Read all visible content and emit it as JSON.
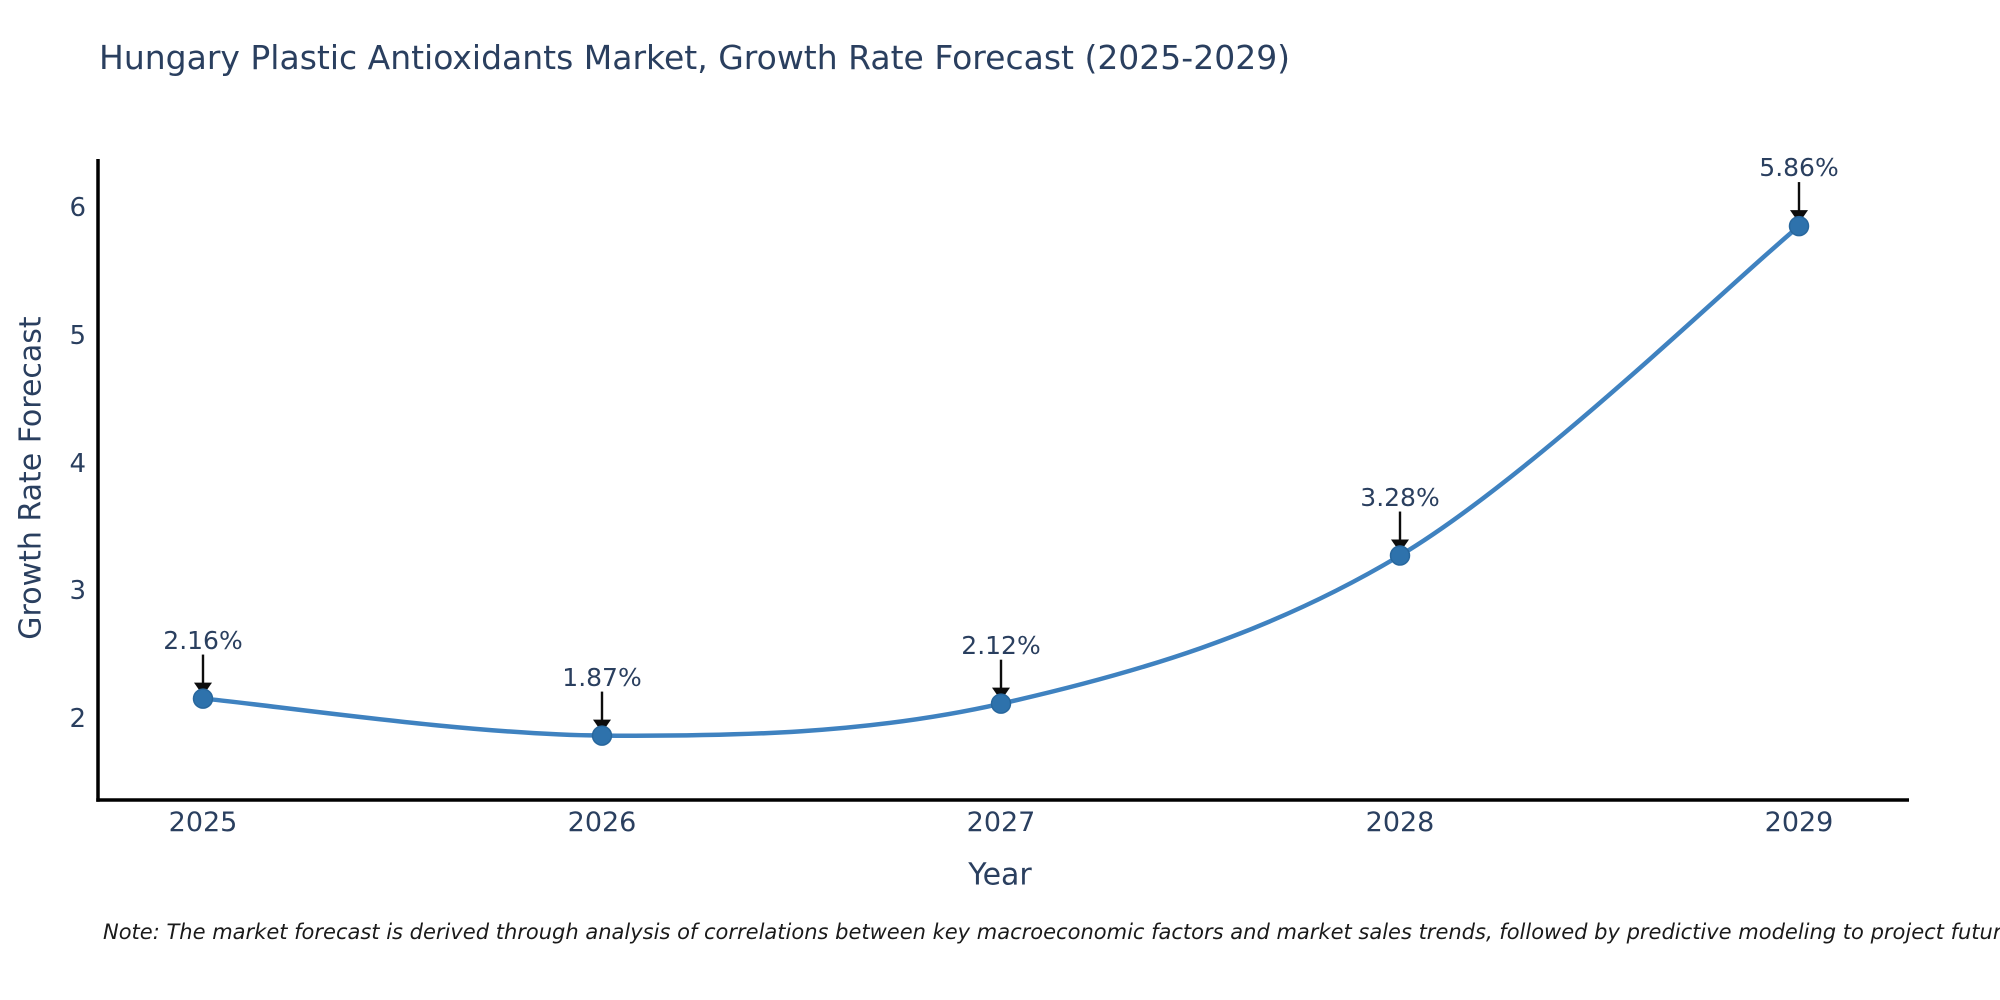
{
  "title": "Hungary Plastic Antioxidants Market, Growth Rate Forecast (2025-2029)",
  "note": "Note: The market forecast is derived through analysis of correlations between key macroeconomic factors and market sales trends, followed by predictive modeling to project future sales.",
  "colors": {
    "line": "#3f82c0",
    "marker": "#2e72ac",
    "marker_edge": "#28679d",
    "axis": "#000000",
    "text": "#2a3f5f",
    "annotation_arrow": "#0d0d0d",
    "note_text": "#1a1a1a",
    "background": "#ffffff"
  },
  "chart_data": {
    "type": "line",
    "title": "Hungary Plastic Antioxidants Market, Growth Rate Forecast (2025-2029)",
    "xlabel": "Year",
    "ylabel": "Growth Rate Forecast",
    "categories": [
      "2025",
      "2026",
      "2027",
      "2028",
      "2029"
    ],
    "x": [
      2025,
      2026,
      2027,
      2028,
      2029
    ],
    "values": [
      2.16,
      1.87,
      2.12,
      3.28,
      5.86
    ],
    "point_labels": [
      "2.16%",
      "1.87%",
      "2.12%",
      "3.28%",
      "5.86%"
    ],
    "yticks": [
      2,
      3,
      4,
      5,
      6
    ],
    "ylim": [
      1.37,
      6.39
    ],
    "grid": false,
    "legend": false,
    "curve": "smooth-spline",
    "annotation_style": "value label with black down-arrow to marker"
  }
}
